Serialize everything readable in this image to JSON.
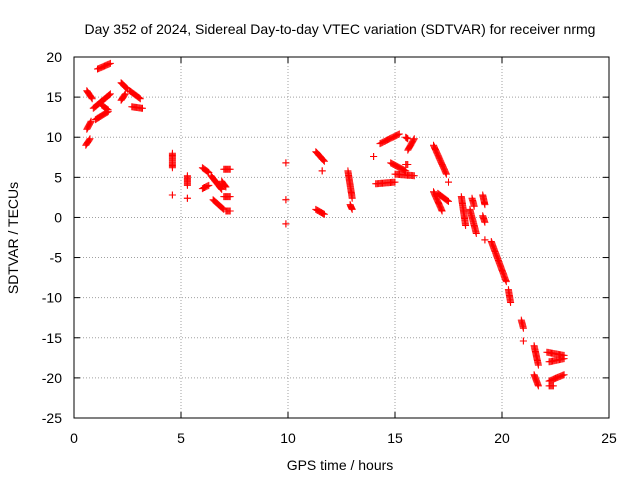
{
  "chart_data": {
    "type": "scatter",
    "title": "Day 352 of 2024, Sidereal Day-to-day VTEC variation (SDTVAR) for receiver nrmg",
    "xlabel": "GPS time / hours",
    "ylabel": "SDTVAR / TECUs",
    "xlim": [
      0,
      25
    ],
    "ylim": [
      -25,
      20
    ],
    "xticks": [
      0,
      5,
      10,
      15,
      20,
      25
    ],
    "yticks": [
      20,
      15,
      10,
      5,
      0,
      -5,
      -10,
      -15,
      -20,
      -25
    ],
    "grid": true,
    "marker": "+",
    "colors": {
      "points": "#ff0000",
      "axes": "#000000",
      "grid": "#a0a0a0"
    },
    "segments": [
      [
        0.55,
        9.0,
        0.75,
        9.8
      ],
      [
        0.6,
        11.0,
        0.8,
        12.0
      ],
      [
        0.6,
        15.8,
        0.85,
        14.8
      ],
      [
        0.9,
        13.6,
        1.7,
        15.4
      ],
      [
        1.0,
        12.2,
        1.6,
        13.2
      ],
      [
        1.1,
        18.5,
        1.7,
        19.2
      ],
      [
        1.3,
        14.0,
        1.6,
        13.4
      ],
      [
        2.2,
        14.6,
        2.4,
        15.4
      ],
      [
        2.2,
        16.8,
        2.5,
        16.0
      ],
      [
        2.6,
        15.8,
        3.1,
        14.8
      ],
      [
        2.7,
        13.8,
        3.2,
        13.6
      ],
      [
        4.6,
        8.0,
        4.6,
        6.2
      ],
      [
        4.6,
        2.8,
        4.6,
        2.8
      ],
      [
        5.3,
        5.2,
        5.3,
        4.0
      ],
      [
        5.3,
        2.4,
        5.3,
        2.4
      ],
      [
        6.0,
        6.2,
        6.3,
        5.6
      ],
      [
        6.0,
        3.6,
        6.3,
        4.0
      ],
      [
        6.4,
        5.2,
        6.9,
        3.5
      ],
      [
        6.5,
        2.2,
        7.0,
        1.0
      ],
      [
        6.9,
        4.5,
        7.1,
        3.8
      ],
      [
        7.0,
        6.0,
        7.3,
        6.0
      ],
      [
        7.0,
        2.6,
        7.3,
        2.6
      ],
      [
        7.1,
        0.8,
        7.3,
        0.8
      ],
      [
        9.9,
        6.8,
        9.9,
        6.8
      ],
      [
        9.9,
        2.2,
        9.9,
        2.2
      ],
      [
        9.9,
        -0.8,
        9.9,
        -0.8
      ],
      [
        11.3,
        8.2,
        11.7,
        7.0
      ],
      [
        11.3,
        1.0,
        11.7,
        0.4
      ],
      [
        11.6,
        5.8,
        11.6,
        5.8
      ],
      [
        12.8,
        5.8,
        13.0,
        2.4
      ],
      [
        12.9,
        1.6,
        13.0,
        1.0
      ],
      [
        14.0,
        7.6,
        14.0,
        7.6
      ],
      [
        14.1,
        4.2,
        15.0,
        4.4
      ],
      [
        14.3,
        9.2,
        15.2,
        10.4
      ],
      [
        14.8,
        6.8,
        15.5,
        5.8
      ],
      [
        15.0,
        5.4,
        15.9,
        5.2
      ],
      [
        15.5,
        6.6,
        15.6,
        6.6
      ],
      [
        15.5,
        10.0,
        15.6,
        9.8
      ],
      [
        15.6,
        8.4,
        15.9,
        9.8
      ],
      [
        16.8,
        9.0,
        17.4,
        5.4
      ],
      [
        16.8,
        3.2,
        17.2,
        0.8
      ],
      [
        17.0,
        3.0,
        17.5,
        2.0
      ],
      [
        17.5,
        4.4,
        17.5,
        4.4
      ],
      [
        18.1,
        2.6,
        18.3,
        -1.0
      ],
      [
        18.5,
        1.0,
        18.8,
        -2.0
      ],
      [
        18.6,
        2.4,
        18.7,
        1.4
      ],
      [
        19.1,
        2.8,
        19.2,
        1.6
      ],
      [
        19.1,
        0.2,
        19.2,
        -0.6
      ],
      [
        19.2,
        -2.8,
        19.2,
        -2.8
      ],
      [
        19.5,
        -3.0,
        20.2,
        -8.0
      ],
      [
        20.3,
        -9.0,
        20.4,
        -10.6
      ],
      [
        20.9,
        -12.8,
        21.0,
        -13.8
      ],
      [
        21.0,
        -15.4,
        21.0,
        -15.4
      ],
      [
        21.5,
        -16.0,
        21.7,
        -18.4
      ],
      [
        21.5,
        -19.6,
        21.7,
        -21.0
      ],
      [
        22.1,
        -16.8,
        22.9,
        -17.2
      ],
      [
        22.2,
        -18.0,
        22.9,
        -17.6
      ],
      [
        22.2,
        -20.4,
        22.9,
        -19.6
      ],
      [
        22.2,
        -21.0,
        22.4,
        -21.0
      ]
    ]
  }
}
